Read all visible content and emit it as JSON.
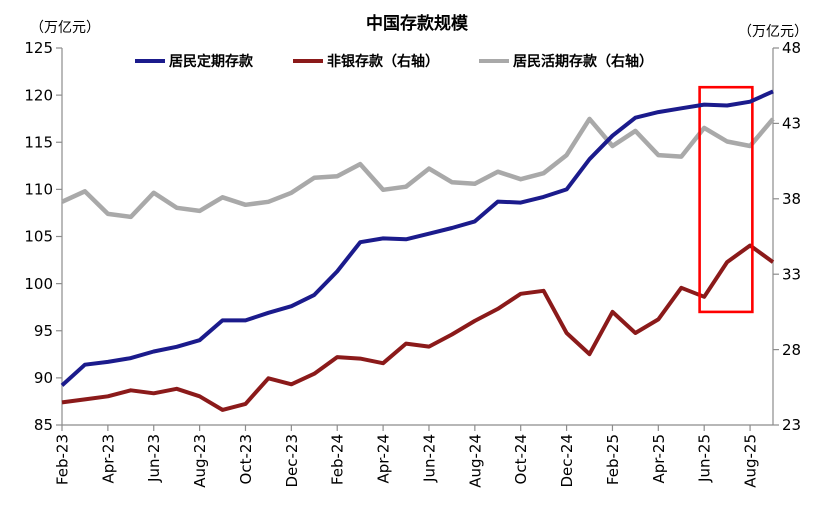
{
  "title": "中国存款规模",
  "unit_left": "（万亿元）",
  "unit_right": "（万亿元）",
  "chart_data": {
    "type": "line",
    "x": [
      "Feb-23",
      "Mar-23",
      "Apr-23",
      "May-23",
      "Jun-23",
      "Jul-23",
      "Aug-23",
      "Sep-23",
      "Oct-23",
      "Nov-23",
      "Dec-23",
      "Jan-24",
      "Feb-24",
      "Mar-24",
      "Apr-24",
      "May-24",
      "Jun-24",
      "Jul-24",
      "Aug-24",
      "Sep-24",
      "Oct-24",
      "Nov-24",
      "Dec-24",
      "Jan-25",
      "Feb-25",
      "Mar-25",
      "Apr-25",
      "May-25",
      "Jun-25",
      "Jul-25",
      "Aug-25",
      "Sep-25"
    ],
    "x_tick_labels": [
      "Feb-23",
      "Apr-23",
      "Jun-23",
      "Aug-23",
      "Oct-23",
      "Dec-23",
      "Feb-24",
      "Apr-24",
      "Jun-24",
      "Aug-24",
      "Oct-24",
      "Dec-24",
      "Feb-25",
      "Apr-25",
      "Jun-25",
      "Aug-25"
    ],
    "left_axis": {
      "min": 85,
      "max": 125,
      "step": 5,
      "unit": "万亿元"
    },
    "right_axis": {
      "min": 23,
      "max": 48,
      "step": 5,
      "unit": "万亿元"
    },
    "grid": false,
    "legend_position": "top",
    "series": [
      {
        "name": "居民定期存款",
        "axis": "left",
        "color": "#1b1b8c",
        "values": [
          89.2,
          91.4,
          91.7,
          92.1,
          92.8,
          93.3,
          94.0,
          96.1,
          96.1,
          96.9,
          97.6,
          98.8,
          101.3,
          104.4,
          104.8,
          104.7,
          105.3,
          105.9,
          106.6,
          108.7,
          108.6,
          109.2,
          110.0,
          113.2,
          115.7,
          117.6,
          118.2,
          118.6,
          119.0,
          118.9,
          119.3,
          120.4
        ]
      },
      {
        "name": "非银存款（右轴）",
        "axis": "right",
        "color": "#8b1a1a",
        "values": [
          24.5,
          24.7,
          24.9,
          25.3,
          25.1,
          25.4,
          24.9,
          24.0,
          24.4,
          26.1,
          25.7,
          26.4,
          27.5,
          27.4,
          27.1,
          28.4,
          28.2,
          29.0,
          29.9,
          30.7,
          31.7,
          31.9,
          29.1,
          27.7,
          30.5,
          29.1,
          30.0,
          32.1,
          31.5,
          33.8,
          34.9,
          33.8
        ]
      },
      {
        "name": "居民活期存款（右轴）",
        "axis": "right",
        "color": "#a9a9a9",
        "values": [
          37.8,
          38.5,
          37.0,
          36.8,
          38.4,
          37.4,
          37.2,
          38.1,
          37.6,
          37.8,
          38.4,
          39.4,
          39.5,
          40.3,
          38.6,
          38.8,
          40.0,
          39.1,
          39.0,
          39.8,
          39.3,
          39.7,
          40.9,
          43.3,
          41.5,
          42.5,
          40.9,
          40.8,
          42.7,
          41.8,
          41.5,
          43.3
        ]
      }
    ],
    "highlight_box": {
      "color": "#ff0000",
      "x_start_index": 27.8,
      "x_end_index": 30.1,
      "top_right_axis_value": 45.4,
      "bottom_right_axis_value": 30.5
    }
  }
}
